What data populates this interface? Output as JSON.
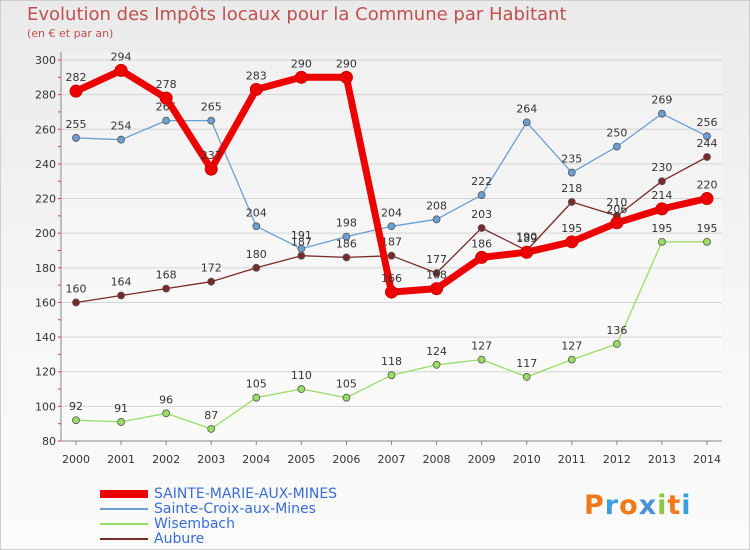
{
  "title": "Evolution des Impôts locaux pour la Commune par Habitant",
  "subtitle": "(en € et par an)",
  "logo_text": "Proxiti",
  "chart_data": {
    "type": "line",
    "x": [
      "2000",
      "2001",
      "2002",
      "2003",
      "2004",
      "2005",
      "2006",
      "2007",
      "2008",
      "2009",
      "2010",
      "2011",
      "2012",
      "2013",
      "2014"
    ],
    "ylim": [
      80,
      300
    ],
    "yticks": [
      80,
      100,
      120,
      140,
      160,
      180,
      200,
      220,
      240,
      260,
      280,
      300
    ],
    "grid": "horizontal",
    "legend_position": "bottom-left",
    "series": [
      {
        "name": "SAINTE-MARIE-AUX-MINES",
        "color": "#ee0000",
        "values": [
          282,
          294,
          278,
          237,
          283,
          290,
          290,
          166,
          168,
          186,
          189,
          195,
          206,
          214,
          220
        ]
      },
      {
        "name": "Sainte-Croix-aux-Mines",
        "color": "#6a9fd1",
        "values": [
          255,
          254,
          265,
          265,
          204,
          191,
          198,
          204,
          208,
          222,
          264,
          235,
          250,
          269,
          256
        ]
      },
      {
        "name": "Wisembach",
        "color": "#99dd66",
        "values": [
          92,
          91,
          96,
          87,
          105,
          110,
          105,
          118,
          124,
          127,
          117,
          127,
          136,
          195,
          195
        ]
      },
      {
        "name": "Aubure",
        "color": "#7a2a2a",
        "values": [
          160,
          164,
          168,
          172,
          180,
          187,
          186,
          187,
          177,
          203,
          190,
          218,
          210,
          230,
          244
        ]
      }
    ]
  }
}
